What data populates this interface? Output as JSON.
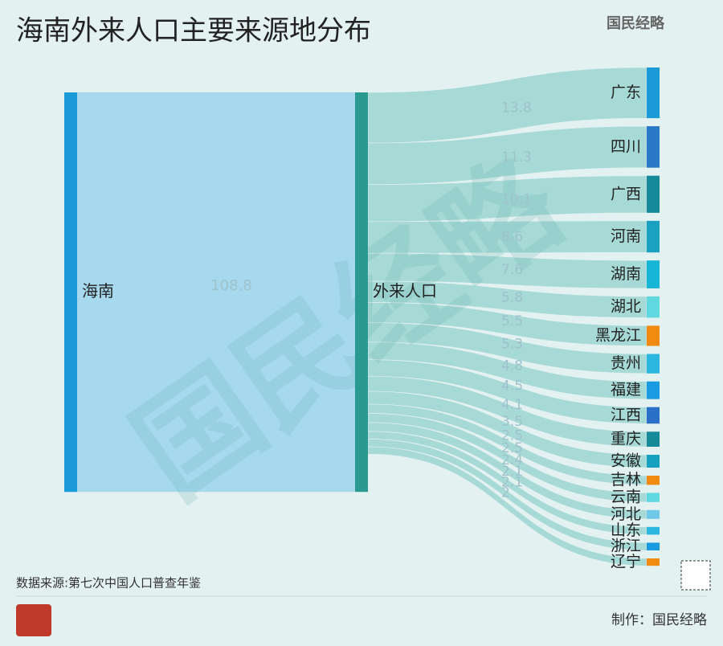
{
  "chart_data": {
    "type": "sankey",
    "title": "海南外来人口主要来源地分布",
    "source_node": "海南",
    "middle_node": "外来人口",
    "total": 108.8,
    "total_color": "#1a9ad9",
    "middle_color": "#2a9a90",
    "categories": [
      "广东",
      "四川",
      "广西",
      "河南",
      "湖南",
      "湖北",
      "黑龙江",
      "贵州",
      "福建",
      "江西",
      "重庆",
      "安徽",
      "吉林",
      "云南",
      "河北",
      "山东",
      "浙江",
      "辽宁"
    ],
    "values": [
      13.8,
      11.3,
      10.1,
      8.6,
      7.6,
      5.8,
      5.5,
      5.3,
      4.8,
      4.5,
      4.1,
      3.5,
      2.5,
      2.5,
      2.4,
      2.1,
      2.1,
      2
    ],
    "colors": [
      "#1a9ad9",
      "#2a78c8",
      "#168a9a",
      "#1aa0c0",
      "#15b5d5",
      "#5fd8e0",
      "#f08a10",
      "#2ab8e0",
      "#1a9ae0",
      "#2a70c8",
      "#178a9a",
      "#18a0c0",
      "#f08a10",
      "#60d8e0",
      "#70c8e8",
      "#2ab8e0",
      "#1a9ae0",
      "#f08a10"
    ],
    "note": "数据来源:第七次中国人口普查年鉴",
    "brand": "国民经略",
    "credit": "制作：国民经略"
  }
}
